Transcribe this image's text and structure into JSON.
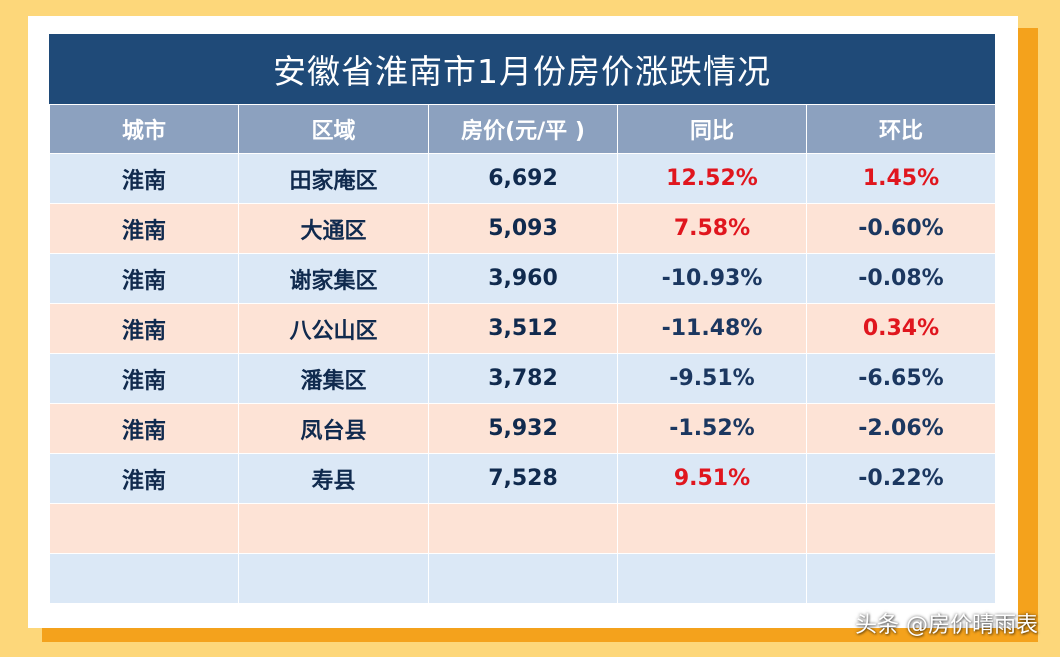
{
  "colors": {
    "title_bg": "#1f4a78",
    "header_bg": "#8ca1bf",
    "row_blue": "#dbe8f6",
    "row_peach": "#fde3d6",
    "increase": "#e0161e",
    "decrease": "#1b3760",
    "background": "#fdd77a",
    "frame": "#f4a21c"
  },
  "chart_data": {
    "type": "table",
    "title": "安徽省淮南市1月份房价涨跌情况",
    "columns": [
      "城市",
      "区域",
      "房价(元/平 )",
      "同比",
      "环比"
    ],
    "rows": [
      [
        "淮南",
        "田家庵区",
        "6,692",
        "12.52%",
        "1.45%"
      ],
      [
        "淮南",
        "大通区",
        "5,093",
        "7.58%",
        "-0.60%"
      ],
      [
        "淮南",
        "谢家集区",
        "3,960",
        "-10.93%",
        "-0.08%"
      ],
      [
        "淮南",
        "八公山区",
        "3,512",
        "-11.48%",
        "0.34%"
      ],
      [
        "淮南",
        "潘集区",
        "3,782",
        "-9.51%",
        "-6.65%"
      ],
      [
        "淮南",
        "凤台县",
        "5,932",
        "-1.52%",
        "-2.06%"
      ],
      [
        "淮南",
        "寿县",
        "7,528",
        "9.51%",
        "-0.22%"
      ]
    ],
    "empty_rows": 2
  },
  "watermark": "头条 @房价晴雨表"
}
